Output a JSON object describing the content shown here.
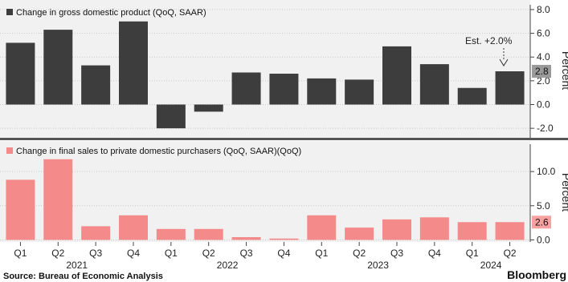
{
  "chart_data": [
    {
      "type": "bar",
      "legend": "Change in gross domestic product (QoQ, SAAR)",
      "ylabel": "Percent",
      "ylim": [
        -2.8,
        8.4
      ],
      "yticks": [
        "8.0",
        "6.0",
        "4.0",
        "2.0",
        "0.0",
        "-2.0"
      ],
      "yticks_values": [
        8,
        6,
        4,
        2,
        0,
        -2
      ],
      "color": "#3d3d3d",
      "values": [
        5.2,
        6.3,
        3.3,
        7.0,
        -2.0,
        -0.6,
        2.7,
        2.6,
        2.2,
        2.1,
        4.9,
        3.4,
        1.4,
        2.8
      ],
      "last_value_label": "2.8",
      "annotation": "Est. +2.0%"
    },
    {
      "type": "bar",
      "legend": "Change in final sales to private domestic purchasers (QoQ, SAAR)(QoQ)",
      "ylabel": "Percent",
      "ylim": [
        -0.3,
        14.0
      ],
      "yticks": [
        "10.0",
        "5.0",
        "0.0"
      ],
      "yticks_values": [
        10,
        5,
        0
      ],
      "color": "#f58a8a",
      "values": [
        8.8,
        11.8,
        2.0,
        3.6,
        1.6,
        1.6,
        0.4,
        0.2,
        3.6,
        1.8,
        3.0,
        3.3,
        2.6,
        2.6
      ],
      "last_value_label": "2.6"
    }
  ],
  "x_quarters": [
    "Q1",
    "Q2",
    "Q3",
    "Q4",
    "Q1",
    "Q2",
    "Q3",
    "Q4",
    "Q1",
    "Q2",
    "Q3",
    "Q4",
    "Q1",
    "Q2"
  ],
  "x_years": [
    "2021",
    "2022",
    "2023",
    "2024"
  ],
  "footer": {
    "source": "Source: Bureau of Economic Analysis",
    "brand": "Bloomberg"
  }
}
